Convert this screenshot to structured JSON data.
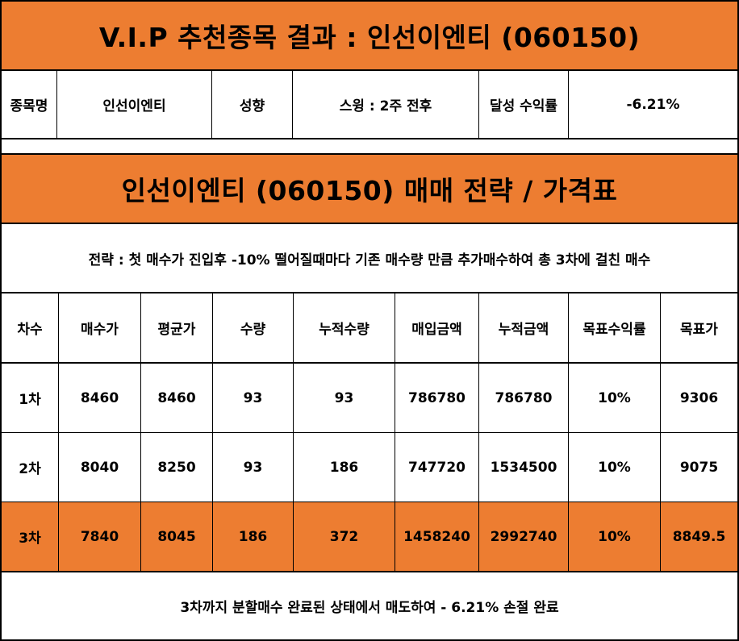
{
  "title": "V.I.P 추천종목 결과 : 인선이엔티 (060150)",
  "info": {
    "name_label": "종목명",
    "name_value": "인선이엔티",
    "type_label": "성향",
    "type_value": "스윙 : 2주 전후",
    "return_label": "달성 수익률",
    "return_value": "-6.21%"
  },
  "strategy_title": "인선이엔티 (060150) 매매 전략 / 가격표",
  "strategy_desc": "전략 : 첫 매수가 진입후 -10% 떨어질때마다 기존 매수량 만큼 추가매수하여 총 3차에 걸친 매수",
  "table": {
    "headers": [
      "차수",
      "매수가",
      "평균가",
      "수량",
      "누적수량",
      "매입금액",
      "누적금액",
      "목표수익률",
      "목표가"
    ],
    "rows": [
      [
        "1차",
        "8460",
        "8460",
        "93",
        "93",
        "786780",
        "786780",
        "10%",
        "9306"
      ],
      [
        "2차",
        "8040",
        "8250",
        "93",
        "186",
        "747720",
        "1534500",
        "10%",
        "9075"
      ],
      [
        "3차",
        "7840",
        "8045",
        "186",
        "372",
        "1458240",
        "2992740",
        "10%",
        "8849.5"
      ]
    ]
  },
  "footer": "3차까지 분할매수 완료된 상태에서 매도하여 - 6.21% 손절 완료",
  "colors": {
    "accent": "#ED7D31"
  }
}
